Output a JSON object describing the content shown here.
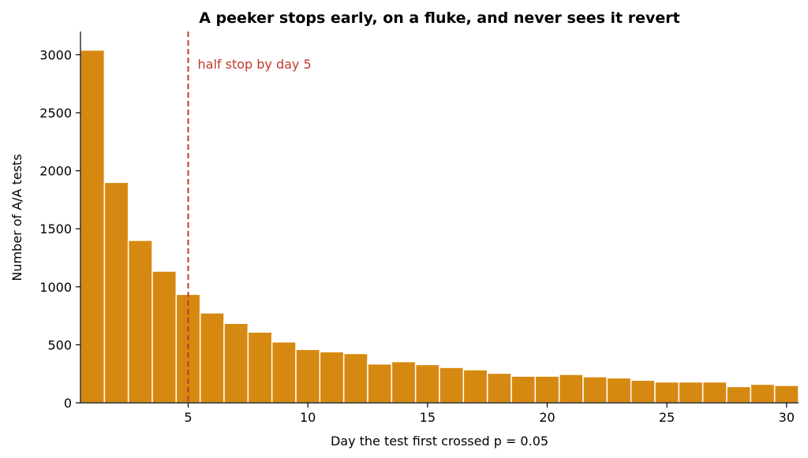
{
  "chart_data": {
    "type": "bar",
    "title": "A peeker stops early, on a fluke, and never sees it revert",
    "xlabel": "Day the test first crossed p = 0.05",
    "ylabel": "Number of A/A tests",
    "x": [
      1,
      2,
      3,
      4,
      5,
      6,
      7,
      8,
      9,
      10,
      11,
      12,
      13,
      14,
      15,
      16,
      17,
      18,
      19,
      20,
      21,
      22,
      23,
      24,
      25,
      26,
      27,
      28,
      29,
      30
    ],
    "values": [
      3040,
      1900,
      1400,
      1135,
      935,
      775,
      685,
      610,
      525,
      460,
      440,
      425,
      335,
      355,
      330,
      305,
      285,
      255,
      230,
      230,
      245,
      225,
      215,
      195,
      180,
      180,
      180,
      140,
      160,
      150
    ],
    "xlim": [
      0.5,
      30.5
    ],
    "ylim": [
      0,
      3200
    ],
    "xticks": [
      5,
      10,
      15,
      20,
      25,
      30
    ],
    "yticks": [
      0,
      500,
      1000,
      1500,
      2000,
      2500,
      3000
    ],
    "bar_color": "#d68910",
    "annotation": {
      "text": "half stop by day 5",
      "x": 5,
      "color": "#c0392b"
    },
    "grid": false
  }
}
